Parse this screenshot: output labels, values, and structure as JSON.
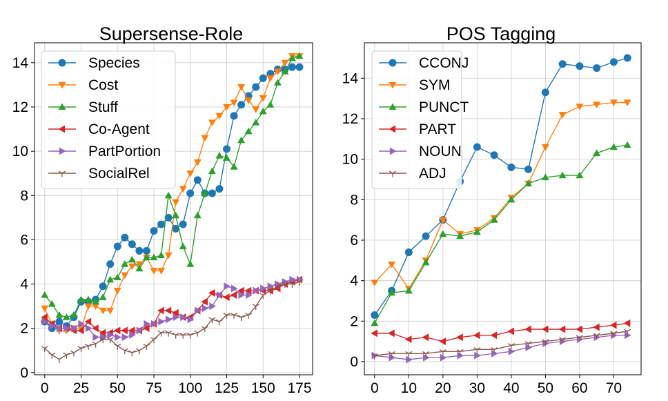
{
  "chart_data": [
    {
      "type": "line",
      "title": "Supersense-Role",
      "xlabel": "",
      "ylabel": "",
      "xlim": [
        -7,
        184
      ],
      "ylim": [
        -0.1,
        14.9
      ],
      "xticks": [
        0,
        25,
        50,
        75,
        100,
        125,
        150,
        175
      ],
      "yticks": [
        0,
        2,
        4,
        6,
        8,
        10,
        12,
        14
      ],
      "grid": true,
      "legend": "top-left",
      "series": [
        {
          "name": "Species",
          "color": "#1f77b4",
          "marker": "circle",
          "x": [
            0,
            5,
            10,
            15,
            20,
            25,
            30,
            35,
            40,
            45,
            50,
            55,
            60,
            65,
            70,
            75,
            80,
            85,
            90,
            95,
            100,
            105,
            110,
            115,
            120,
            125,
            130,
            135,
            140,
            145,
            150,
            155,
            160,
            165,
            170,
            175
          ],
          "y": [
            2.3,
            2.0,
            2.3,
            2.1,
            2.5,
            3.2,
            3.2,
            3.3,
            3.9,
            4.9,
            5.7,
            6.1,
            5.8,
            5.5,
            5.5,
            6.4,
            6.7,
            7.0,
            6.5,
            6.7,
            8.1,
            8.7,
            8.1,
            8.1,
            8.3,
            10.1,
            11.6,
            12.1,
            12.5,
            12.9,
            13.3,
            13.5,
            13.7,
            13.7,
            13.8,
            13.8
          ]
        },
        {
          "name": "Cost",
          "color": "#ff7f0e",
          "marker": "triangle-down",
          "x": [
            0,
            5,
            10,
            15,
            20,
            25,
            30,
            35,
            40,
            45,
            50,
            55,
            60,
            65,
            70,
            75,
            80,
            85,
            90,
            95,
            100,
            105,
            110,
            115,
            120,
            125,
            130,
            135,
            140,
            145,
            150,
            155,
            160,
            165,
            170,
            175
          ],
          "y": [
            2.9,
            2.2,
            1.9,
            1.9,
            2.0,
            2.0,
            3.0,
            3.0,
            2.8,
            2.8,
            3.7,
            4.4,
            4.8,
            4.9,
            5.2,
            4.6,
            4.6,
            5.3,
            7.7,
            8.3,
            9.0,
            9.5,
            10.6,
            11.3,
            11.6,
            12.0,
            12.2,
            12.9,
            12.3,
            11.9,
            12.4,
            13.3,
            13.6,
            14.0,
            14.3,
            14.3
          ]
        },
        {
          "name": "Stuff",
          "color": "#2ca02c",
          "marker": "triangle-up",
          "x": [
            0,
            5,
            10,
            15,
            20,
            25,
            30,
            35,
            40,
            45,
            50,
            55,
            60,
            65,
            70,
            75,
            80,
            85,
            90,
            95,
            100,
            105,
            110,
            115,
            120,
            125,
            130,
            135,
            140,
            145,
            150,
            155,
            160,
            165,
            170,
            175
          ],
          "y": [
            3.5,
            3.1,
            2.6,
            2.5,
            2.6,
            3.3,
            3.3,
            3.2,
            3.4,
            4.2,
            4.3,
            4.9,
            5.1,
            4.7,
            5.2,
            5.2,
            5.3,
            8.0,
            7.1,
            5.7,
            4.9,
            7.1,
            8.1,
            9.1,
            9.8,
            9.7,
            9.3,
            10.5,
            10.9,
            11.3,
            11.8,
            12.1,
            13.1,
            13.6,
            14.2,
            14.3
          ]
        },
        {
          "name": "Co-Agent",
          "color": "#d62728",
          "marker": "triangle-left",
          "x": [
            0,
            5,
            10,
            15,
            20,
            25,
            30,
            35,
            40,
            45,
            50,
            55,
            60,
            65,
            70,
            75,
            80,
            85,
            90,
            95,
            100,
            105,
            110,
            115,
            120,
            125,
            130,
            135,
            140,
            145,
            150,
            155,
            160,
            165,
            170,
            175
          ],
          "y": [
            2.5,
            2.2,
            2.0,
            2.0,
            1.9,
            1.9,
            2.3,
            2.0,
            1.8,
            1.8,
            1.9,
            1.9,
            1.9,
            1.9,
            2.0,
            2.2,
            2.8,
            2.8,
            2.7,
            2.5,
            2.5,
            2.8,
            3.2,
            3.6,
            3.5,
            3.4,
            3.5,
            3.7,
            3.7,
            3.7,
            3.7,
            3.7,
            3.8,
            4.0,
            4.1,
            4.2
          ]
        },
        {
          "name": "PartPortion",
          "color": "#9467bd",
          "marker": "triangle-right",
          "x": [
            0,
            5,
            10,
            15,
            20,
            25,
            30,
            35,
            40,
            45,
            50,
            55,
            60,
            65,
            70,
            75,
            80,
            85,
            90,
            95,
            100,
            105,
            110,
            115,
            120,
            125,
            130,
            135,
            140,
            145,
            150,
            155,
            160,
            165,
            170,
            175
          ],
          "y": [
            2.3,
            2.1,
            2.0,
            2.0,
            2.0,
            2.2,
            2.0,
            1.6,
            1.6,
            1.7,
            1.6,
            1.6,
            1.7,
            1.9,
            2.2,
            2.2,
            2.3,
            2.4,
            2.5,
            2.5,
            2.4,
            2.8,
            2.9,
            3.0,
            3.5,
            3.9,
            3.8,
            3.5,
            3.5,
            3.7,
            3.8,
            3.9,
            4.0,
            4.1,
            4.2,
            4.2
          ]
        },
        {
          "name": "SocialRel",
          "color": "#8c564b",
          "marker": "tri-down",
          "x": [
            0,
            5,
            10,
            15,
            20,
            25,
            30,
            35,
            40,
            45,
            50,
            55,
            60,
            65,
            70,
            75,
            80,
            85,
            90,
            95,
            100,
            105,
            110,
            115,
            120,
            125,
            130,
            135,
            140,
            145,
            150,
            155,
            160,
            165,
            170,
            175
          ],
          "y": [
            1.1,
            0.8,
            0.6,
            0.8,
            0.9,
            1.1,
            1.2,
            1.3,
            1.5,
            1.5,
            1.2,
            1.0,
            0.9,
            1.0,
            1.2,
            1.5,
            1.8,
            1.8,
            1.7,
            1.7,
            1.7,
            1.8,
            2.0,
            2.4,
            2.3,
            2.6,
            2.6,
            2.5,
            2.6,
            3.0,
            3.5,
            3.7,
            3.9,
            4.0,
            4.0,
            4.1
          ]
        }
      ]
    },
    {
      "type": "line",
      "title": "POS Tagging",
      "xlabel": "",
      "ylabel": "",
      "xlim": [
        -3,
        78
      ],
      "ylim": [
        -0.65,
        15.75
      ],
      "xticks": [
        0,
        10,
        20,
        30,
        40,
        50,
        60,
        70
      ],
      "yticks": [
        0,
        2,
        4,
        6,
        8,
        10,
        12,
        14
      ],
      "grid": true,
      "legend": "top-left",
      "series": [
        {
          "name": "CCONJ",
          "color": "#1f77b4",
          "marker": "circle",
          "x": [
            0,
            5,
            10,
            15,
            20,
            25,
            30,
            35,
            40,
            45,
            50,
            55,
            60,
            65,
            70,
            74
          ],
          "y": [
            2.3,
            3.5,
            5.4,
            6.2,
            7.0,
            8.9,
            10.6,
            10.2,
            9.6,
            9.5,
            13.3,
            14.7,
            14.6,
            14.5,
            14.8,
            15.0
          ]
        },
        {
          "name": "SYM",
          "color": "#ff7f0e",
          "marker": "triangle-down",
          "x": [
            0,
            5,
            10,
            15,
            20,
            25,
            30,
            35,
            40,
            45,
            50,
            55,
            60,
            65,
            70,
            74
          ],
          "y": [
            3.9,
            4.8,
            3.6,
            5.0,
            7.0,
            6.3,
            6.5,
            7.1,
            8.1,
            8.8,
            10.6,
            12.2,
            12.6,
            12.7,
            12.8,
            12.8
          ]
        },
        {
          "name": "PUNCT",
          "color": "#2ca02c",
          "marker": "triangle-up",
          "x": [
            0,
            5,
            10,
            15,
            20,
            25,
            30,
            35,
            40,
            45,
            50,
            55,
            60,
            65,
            70,
            74
          ],
          "y": [
            1.9,
            3.4,
            3.5,
            4.9,
            6.3,
            6.2,
            6.4,
            7.0,
            8.0,
            8.8,
            9.1,
            9.2,
            9.2,
            10.3,
            10.6,
            10.7
          ]
        },
        {
          "name": "PART",
          "color": "#d62728",
          "marker": "triangle-left",
          "x": [
            0,
            5,
            10,
            15,
            20,
            25,
            30,
            35,
            40,
            45,
            50,
            55,
            60,
            65,
            70,
            74
          ],
          "y": [
            1.4,
            1.4,
            1.1,
            1.2,
            1.0,
            1.2,
            1.3,
            1.3,
            1.5,
            1.6,
            1.6,
            1.6,
            1.6,
            1.7,
            1.8,
            1.9
          ]
        },
        {
          "name": "NOUN",
          "color": "#9467bd",
          "marker": "triangle-right",
          "x": [
            0,
            5,
            10,
            15,
            20,
            25,
            30,
            35,
            40,
            45,
            50,
            55,
            60,
            65,
            70,
            74
          ],
          "y": [
            0.3,
            0.2,
            0.1,
            0.2,
            0.2,
            0.3,
            0.3,
            0.4,
            0.5,
            0.7,
            0.9,
            1.0,
            1.1,
            1.2,
            1.3,
            1.3
          ]
        },
        {
          "name": "ADJ",
          "color": "#8c564b",
          "marker": "tri-down",
          "x": [
            0,
            5,
            10,
            15,
            20,
            25,
            30,
            35,
            40,
            45,
            50,
            55,
            60,
            65,
            70,
            74
          ],
          "y": [
            0.3,
            0.4,
            0.4,
            0.4,
            0.5,
            0.5,
            0.6,
            0.6,
            0.8,
            0.9,
            1.0,
            1.1,
            1.2,
            1.3,
            1.4,
            1.5
          ]
        }
      ]
    }
  ]
}
